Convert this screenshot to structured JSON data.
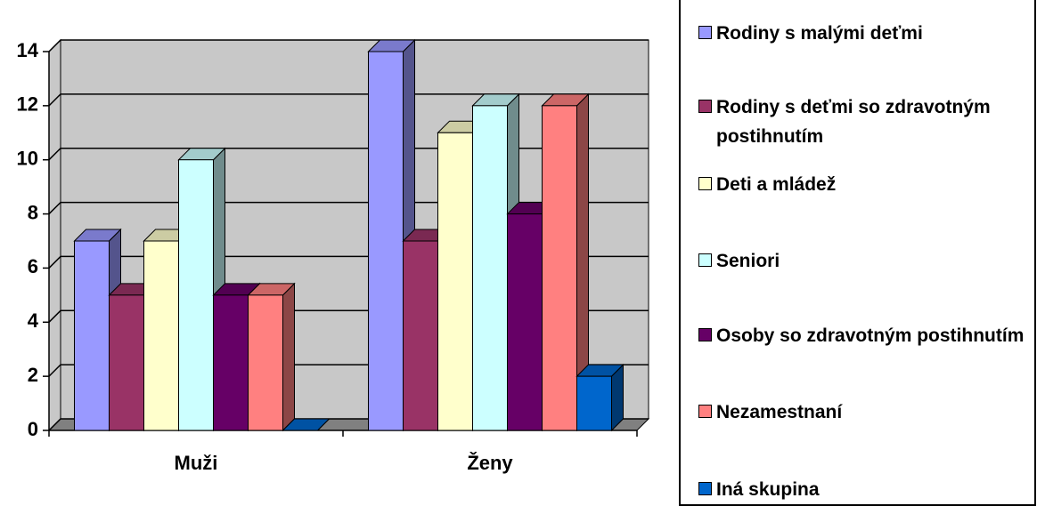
{
  "chart_data": {
    "type": "bar3d",
    "categories": [
      "Muži",
      "Ženy"
    ],
    "series": [
      {
        "name": "Rodiny s malými deťmi",
        "color": "#9999ff",
        "values": [
          7,
          14
        ]
      },
      {
        "name": "Rodiny s deťmi so zdravotným postihnutím",
        "color": "#993366",
        "values": [
          5,
          7
        ]
      },
      {
        "name": "Deti a mládež",
        "color": "#ffffcc",
        "values": [
          7,
          11
        ]
      },
      {
        "name": "Seniori",
        "color": "#ccffff",
        "values": [
          10,
          12
        ]
      },
      {
        "name": "Osoby so zdravotným postihnutím",
        "color": "#660066",
        "values": [
          5,
          8
        ]
      },
      {
        "name": "Nezamestnaní",
        "color": "#ff8080",
        "values": [
          5,
          12
        ]
      },
      {
        "name": "Iná skupina",
        "color": "#0066cc",
        "values": [
          0,
          2
        ]
      }
    ],
    "ylim": [
      0,
      14
    ],
    "yticks": [
      0,
      2,
      4,
      6,
      8,
      10,
      12,
      14
    ],
    "grid": true,
    "legend": "right"
  }
}
